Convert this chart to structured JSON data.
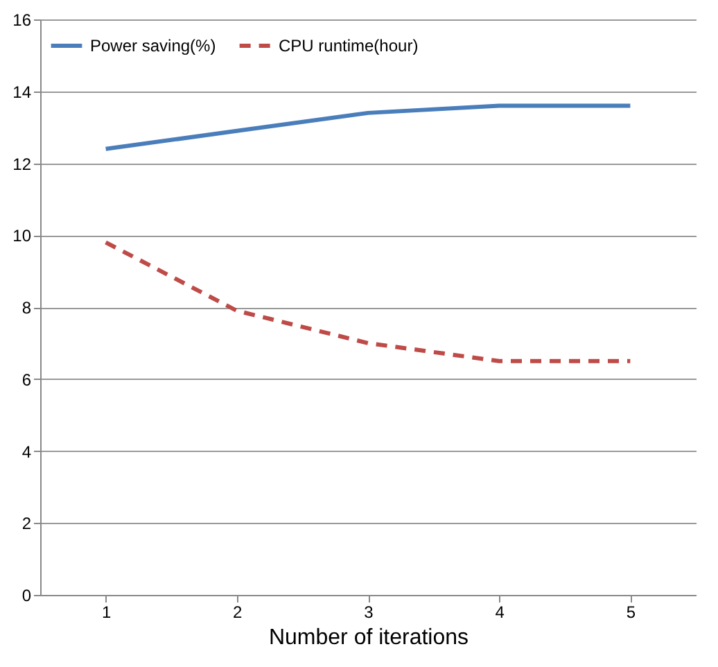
{
  "chart_data": {
    "type": "line",
    "xlabel": "Number of iterations",
    "categories": [
      "1",
      "2",
      "3",
      "4",
      "5"
    ],
    "series": [
      {
        "name": "Power saving(%)",
        "color": "#4a7ebb",
        "line_style": "solid",
        "values": [
          12.4,
          12.9,
          13.4,
          13.6,
          13.6
        ]
      },
      {
        "name": "CPU runtime(hour)",
        "color": "#be4b48",
        "line_style": "dashed",
        "values": [
          9.8,
          7.9,
          7.0,
          6.5,
          6.5
        ]
      }
    ],
    "ylim": [
      0,
      16
    ],
    "yticks": [
      0,
      2,
      4,
      6,
      8,
      10,
      12,
      14,
      16
    ],
    "grid": "y",
    "legend": "top left"
  }
}
